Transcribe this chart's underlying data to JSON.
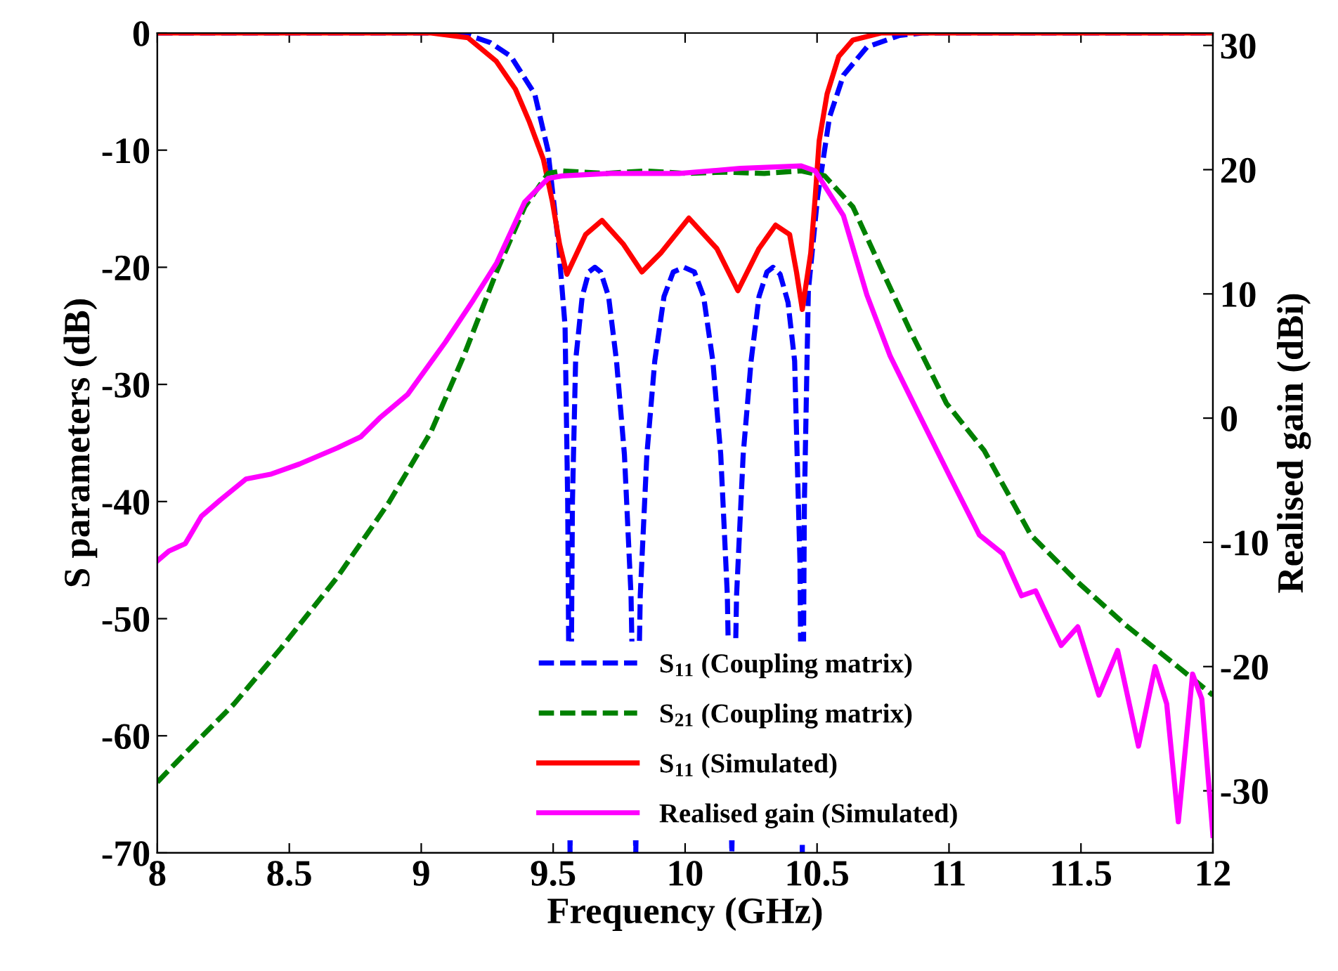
{
  "chart_data": {
    "type": "line",
    "xlabel": "Frequency (GHz)",
    "ylabel": "S parameters (dB)",
    "y2label": "Realised gain (dBi)",
    "xlim": [
      8,
      12
    ],
    "xticks": [
      8,
      8.5,
      9,
      9.5,
      10,
      10.5,
      11,
      11.5,
      12
    ],
    "ylim": [
      -70,
      0
    ],
    "yticks": [
      -70,
      -60,
      -50,
      -40,
      -30,
      -20,
      -10,
      0
    ],
    "y2lim": [
      -35,
      31
    ],
    "y2ticks": [
      -30,
      -20,
      -10,
      0,
      10,
      20,
      30
    ],
    "grid": false,
    "legend": "bottom",
    "series": [
      {
        "name": "S$_{11}$ (Coupling matrix)",
        "color": "#0000ff",
        "line_style": "dashed",
        "axis": "y",
        "x": [
          8,
          9.1,
          9.18,
          9.26,
          9.34,
          9.43,
          9.48,
          9.52,
          9.545,
          9.555,
          9.564,
          9.573,
          9.585,
          9.61,
          9.635,
          9.658,
          9.68,
          9.71,
          9.74,
          9.77,
          9.795,
          9.813,
          9.83,
          9.855,
          9.885,
          9.92,
          9.955,
          9.996,
          10.035,
          10.07,
          10.105,
          10.135,
          10.16,
          10.177,
          10.195,
          10.22,
          10.25,
          10.28,
          10.31,
          10.333,
          10.36,
          10.39,
          10.415,
          10.435,
          10.444,
          10.452,
          10.467,
          10.502,
          10.547,
          10.6,
          10.689,
          10.813,
          10.9,
          12
        ],
        "values": [
          0,
          0,
          -0.2,
          -0.8,
          -2,
          -5.2,
          -10,
          -18,
          -25,
          -40,
          -70,
          -40,
          -28,
          -22.5,
          -20.4,
          -20,
          -20.4,
          -22.5,
          -28,
          -36,
          -48,
          -70,
          -48,
          -36,
          -28,
          -22.5,
          -20.4,
          -20,
          -20.4,
          -22.5,
          -28,
          -36,
          -48,
          -70,
          -48,
          -36,
          -28,
          -22.5,
          -20.4,
          -20,
          -20.6,
          -23,
          -28,
          -45,
          -70,
          -40,
          -22,
          -14,
          -7.2,
          -3.6,
          -1.2,
          -0.2,
          0,
          0
        ]
      },
      {
        "name": "S$_{21}$ (Coupling matrix)",
        "color": "#008000",
        "line_style": "dashed",
        "axis": "y2",
        "x": [
          8,
          8.132,
          8.291,
          8.469,
          8.682,
          8.877,
          9.037,
          9.161,
          9.286,
          9.392,
          9.481,
          9.534,
          9.7,
          9.85,
          10,
          10.15,
          10.3,
          10.44,
          10.529,
          10.636,
          10.742,
          10.849,
          10.99,
          11.133,
          11.31,
          11.488,
          11.666,
          11.843,
          12
        ],
        "values": [
          -29.3,
          -26.4,
          -23,
          -18.5,
          -12.8,
          -6.8,
          -1.1,
          5,
          11.8,
          17,
          19.7,
          19.9,
          19.7,
          19.9,
          19.7,
          19.8,
          19.7,
          19.9,
          19.5,
          17,
          12.1,
          7.2,
          1.2,
          -2.6,
          -9.4,
          -13.2,
          -16.6,
          -19.6,
          -22.3
        ]
      },
      {
        "name": "S$_{11}$ (Simulated)",
        "color": "#ff0000",
        "line_style": "solid",
        "axis": "y",
        "x": [
          8,
          9.037,
          9.177,
          9.284,
          9.357,
          9.41,
          9.463,
          9.497,
          9.524,
          9.552,
          9.623,
          9.685,
          9.765,
          9.836,
          9.907,
          10.014,
          10.12,
          10.2,
          10.28,
          10.343,
          10.396,
          10.422,
          10.444,
          10.476,
          10.493,
          10.508,
          10.538,
          10.582,
          10.636,
          10.742,
          12
        ],
        "values": [
          0,
          0,
          -0.4,
          -2.4,
          -4.8,
          -7.6,
          -10.8,
          -14.4,
          -18,
          -20.6,
          -17.2,
          -16,
          -18,
          -20.4,
          -18.8,
          -15.8,
          -18.4,
          -22,
          -18.4,
          -16.4,
          -17.2,
          -20.4,
          -23.6,
          -18.8,
          -14,
          -9.2,
          -5.2,
          -2,
          -0.6,
          0,
          0
        ]
      },
      {
        "name": "Realised gain (Simulated)",
        "color": "#ff00ff",
        "line_style": "solid",
        "axis": "y2",
        "x": [
          8,
          8.044,
          8.106,
          8.167,
          8.238,
          8.336,
          8.432,
          8.538,
          8.682,
          8.771,
          8.842,
          8.948,
          9.091,
          9.197,
          9.286,
          9.392,
          9.481,
          9.534,
          9.712,
          9.978,
          10.209,
          10.44,
          10.493,
          10.6,
          10.689,
          10.777,
          10.884,
          11.008,
          11.115,
          11.203,
          11.275,
          11.328,
          11.425,
          11.488,
          11.568,
          11.639,
          11.718,
          11.781,
          11.825,
          11.869,
          11.923,
          11.958,
          12
        ],
        "values": [
          -11.5,
          -10.7,
          -10.1,
          -7.9,
          -6.6,
          -4.9,
          -4.5,
          -3.7,
          -2.4,
          -1.5,
          0,
          1.9,
          6.1,
          9.5,
          12.5,
          17.4,
          19.3,
          19.5,
          19.7,
          19.7,
          20.1,
          20.3,
          19.9,
          16.3,
          9.9,
          5,
          0.4,
          -4.9,
          -9.4,
          -10.9,
          -14.3,
          -13.9,
          -18.3,
          -16.8,
          -22.3,
          -18.7,
          -26.4,
          -20,
          -23,
          -32.5,
          -20.6,
          -22.6,
          -33.6
        ]
      }
    ]
  }
}
